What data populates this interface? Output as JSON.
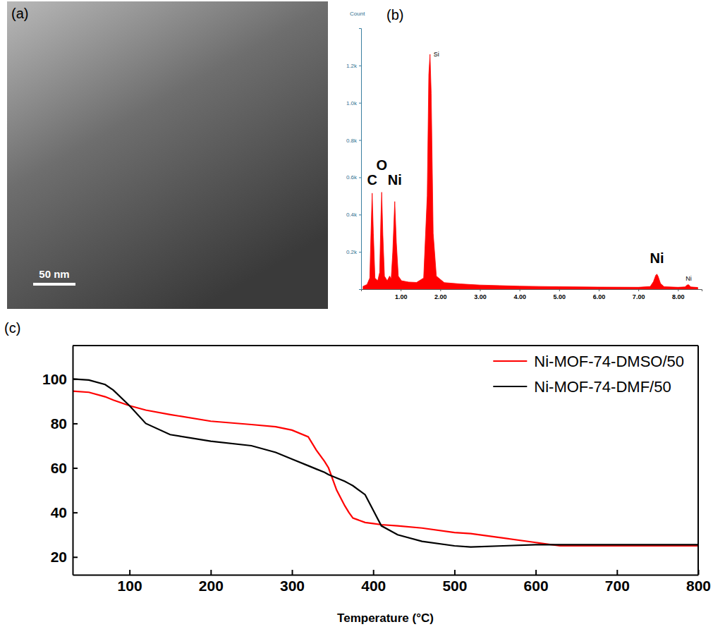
{
  "chart_data": [
    {
      "type": "image",
      "panel": "(a)",
      "scale_bar_label": "50 nm"
    },
    {
      "type": "area",
      "panel": "(b)",
      "y_label": "Count",
      "color": "#ff0000",
      "x": [
        0.05,
        0.15,
        0.22,
        0.25,
        0.28,
        0.31,
        0.35,
        0.42,
        0.47,
        0.5,
        0.52,
        0.55,
        0.59,
        0.66,
        0.72,
        0.76,
        0.8,
        0.85,
        0.89,
        0.94,
        1.02,
        1.2,
        1.4,
        1.58,
        1.67,
        1.71,
        1.74,
        1.77,
        1.82,
        1.9,
        2.1,
        2.5,
        3.0,
        3.5,
        4.0,
        5.0,
        6.0,
        7.0,
        7.3,
        7.38,
        7.44,
        7.47,
        7.5,
        7.56,
        7.65,
        8.0,
        8.18,
        8.23,
        8.27,
        8.32,
        8.5
      ],
      "values": [
        15,
        25,
        60,
        300,
        515,
        300,
        60,
        45,
        90,
        380,
        520,
        290,
        70,
        45,
        70,
        55,
        200,
        470,
        250,
        70,
        45,
        38,
        36,
        60,
        500,
        1150,
        1260,
        1050,
        300,
        70,
        35,
        28,
        22,
        19,
        16,
        13,
        11,
        10,
        14,
        40,
        75,
        80,
        68,
        30,
        13,
        10,
        12,
        22,
        24,
        12,
        9
      ],
      "xlim": [
        0,
        8.6
      ],
      "xticks": [
        {
          "value": 1,
          "label": "1.00"
        },
        {
          "value": 2,
          "label": "2.00"
        },
        {
          "value": 3,
          "label": "3.00"
        },
        {
          "value": 4,
          "label": "4.00"
        },
        {
          "value": 5,
          "label": "5.00"
        },
        {
          "value": 6,
          "label": "6.00"
        },
        {
          "value": 7,
          "label": "7.00"
        },
        {
          "value": 8,
          "label": "8.00"
        }
      ],
      "ylim": [
        0,
        1400
      ],
      "yticks": [
        {
          "value": 200,
          "label": "0.2k"
        },
        {
          "value": 400,
          "label": "0.4k"
        },
        {
          "value": 600,
          "label": "0.6k"
        },
        {
          "value": 800,
          "label": "0.8k"
        },
        {
          "value": 1000,
          "label": "1.0k"
        },
        {
          "value": 1200,
          "label": "1.2k"
        }
      ],
      "element_labels": [
        {
          "text": "C",
          "x": 0.28,
          "y": 560
        },
        {
          "text": "O",
          "x": 0.52,
          "y": 640
        },
        {
          "text": "Ni",
          "x": 0.85,
          "y": 560
        },
        {
          "text": "Ni",
          "x": 7.47,
          "y": 140
        }
      ],
      "annotations": [
        {
          "text": "Si",
          "x": 1.9,
          "y": 1250
        },
        {
          "text": "Ni",
          "x": 8.27,
          "y": 45
        }
      ]
    },
    {
      "type": "line",
      "panel": "(c)",
      "x_label": "Temperature (°C)",
      "legend": "top-right",
      "x": [
        30,
        50,
        70,
        80,
        100,
        120,
        150,
        200,
        250,
        280,
        300,
        320,
        330,
        340,
        345,
        355,
        365,
        370,
        375,
        390,
        400,
        410,
        430,
        460,
        500,
        520,
        560,
        600,
        630,
        700,
        800
      ],
      "series": [
        {
          "name": "Ni-MOF-74-DMSO/50",
          "color": "#ff0000",
          "values": [
            94.5,
            94,
            92,
            90.5,
            88,
            86,
            84,
            81,
            79.5,
            78.5,
            77,
            74,
            68,
            63,
            60,
            50,
            43,
            40,
            37.5,
            35.5,
            35,
            34.5,
            34,
            33,
            31,
            30.5,
            28.5,
            26.5,
            25,
            25,
            25
          ]
        },
        {
          "name": "Ni-MOF-74-DMF/50",
          "color": "#000000",
          "values": [
            100,
            99.5,
            97.5,
            95,
            88,
            80,
            75,
            72,
            70,
            67,
            64,
            61,
            59.5,
            58,
            57,
            55.5,
            54,
            53,
            52,
            48,
            41,
            34,
            30,
            27,
            25,
            24.5,
            25,
            25.5,
            25.5,
            25.5,
            25.5
          ]
        }
      ],
      "xlim": [
        30,
        800
      ],
      "xticks": [
        100,
        200,
        300,
        400,
        500,
        600,
        700,
        800
      ],
      "ylim": [
        12,
        115
      ],
      "yticks": [
        20,
        40,
        60,
        80,
        100
      ]
    }
  ]
}
